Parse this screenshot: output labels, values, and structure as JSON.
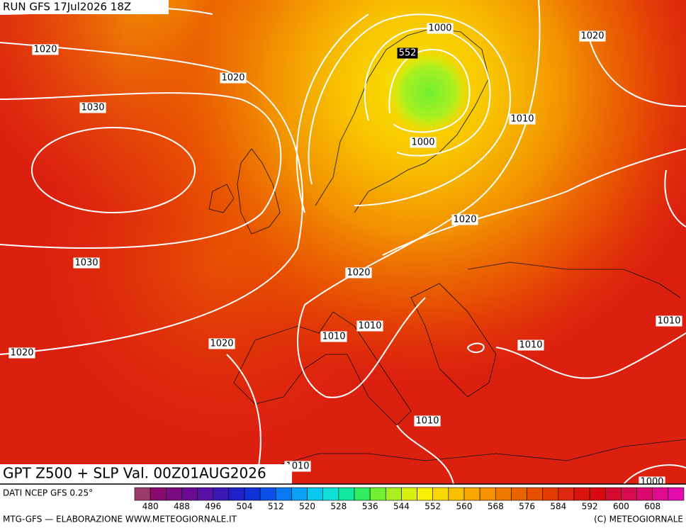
{
  "header": {
    "run": "RUN GFS 17Jul2026 18Z"
  },
  "map": {
    "contour_labels": [
      "1020",
      "1020",
      "1030",
      "1020",
      "1000",
      "552",
      "1010",
      "1000",
      "1020",
      "1030",
      "1020",
      "1010",
      "1010",
      "1020",
      "1020",
      "1010",
      "1010",
      "1010",
      "1010",
      "1000"
    ]
  },
  "footer": {
    "title": "GPT Z500 + SLP Val. 00Z01AUG2026",
    "source": "DATI NCEP GFS 0.25°",
    "colorbar_ticks": [
      480,
      488,
      496,
      504,
      512,
      520,
      528,
      536,
      544,
      552,
      560,
      568,
      576,
      584,
      592,
      600,
      608
    ],
    "colorbar_colors": [
      "#9c3a6a",
      "#8a0a70",
      "#7a0a80",
      "#6a0a92",
      "#5a10a6",
      "#3a18b6",
      "#2020c8",
      "#1030d8",
      "#0a50e8",
      "#0a78f0",
      "#0aa0f4",
      "#0ac8f0",
      "#10e0d8",
      "#10e8a0",
      "#30ec60",
      "#70f030",
      "#a8f020",
      "#d8f010",
      "#f8f000",
      "#f8d800",
      "#f8c000",
      "#f8a800",
      "#f89000",
      "#f07800",
      "#ec6400",
      "#e85000",
      "#e43c00",
      "#e02810",
      "#dc1410",
      "#d80a10",
      "#d40a30",
      "#d80a50",
      "#dc0a70",
      "#e00a90",
      "#e40aae"
    ],
    "credit": "MTG-GFS — ELABORAZIONE WWW.METEOGIORNALE.IT",
    "copyright": "(C) METEOGIORNALE"
  }
}
